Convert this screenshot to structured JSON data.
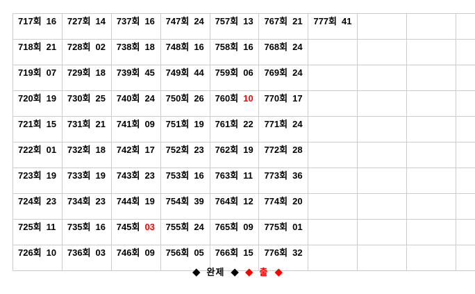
{
  "colors": {
    "text": "#000000",
    "highlight_red": "#ff0000",
    "grid_border": "#cccccc",
    "background": "#ffffff"
  },
  "table": {
    "columns": 10,
    "row_count": 10,
    "round_suffix": "회",
    "rows": [
      [
        {
          "round": "717회",
          "value": "16"
        },
        {
          "round": "727회",
          "value": "14"
        },
        {
          "round": "737회",
          "value": "16"
        },
        {
          "round": "747회",
          "value": "24"
        },
        {
          "round": "757회",
          "value": "13"
        },
        {
          "round": "767회",
          "value": "21"
        },
        {
          "round": "777회",
          "value": "41"
        },
        null,
        null,
        null
      ],
      [
        {
          "round": "718회",
          "value": "21"
        },
        {
          "round": "728회",
          "value": "02"
        },
        {
          "round": "738회",
          "value": "18"
        },
        {
          "round": "748회",
          "value": "16"
        },
        {
          "round": "758회",
          "value": "16"
        },
        {
          "round": "768회",
          "value": "24"
        },
        null,
        null,
        null,
        null
      ],
      [
        {
          "round": "719회",
          "value": "07"
        },
        {
          "round": "729회",
          "value": "18"
        },
        {
          "round": "739회",
          "value": "45"
        },
        {
          "round": "749회",
          "value": "44"
        },
        {
          "round": "759회",
          "value": "06"
        },
        {
          "round": "769회",
          "value": "24"
        },
        null,
        null,
        null,
        null
      ],
      [
        {
          "round": "720회",
          "value": "19"
        },
        {
          "round": "730회",
          "value": "25"
        },
        {
          "round": "740회",
          "value": "24"
        },
        {
          "round": "750회",
          "value": "26"
        },
        {
          "round": "760회",
          "value": "10",
          "red": true
        },
        {
          "round": "770회",
          "value": "17"
        },
        null,
        null,
        null,
        null
      ],
      [
        {
          "round": "721회",
          "value": "15"
        },
        {
          "round": "731회",
          "value": "21"
        },
        {
          "round": "741회",
          "value": "09"
        },
        {
          "round": "751회",
          "value": "19"
        },
        {
          "round": "761회",
          "value": "22"
        },
        {
          "round": "771회",
          "value": "24"
        },
        null,
        null,
        null,
        null
      ],
      [
        {
          "round": "722회",
          "value": "01"
        },
        {
          "round": "732회",
          "value": "18"
        },
        {
          "round": "742회",
          "value": "17"
        },
        {
          "round": "752회",
          "value": "23"
        },
        {
          "round": "762회",
          "value": "19"
        },
        {
          "round": "772회",
          "value": "28"
        },
        null,
        null,
        null,
        null
      ],
      [
        {
          "round": "723회",
          "value": "19"
        },
        {
          "round": "733회",
          "value": "19"
        },
        {
          "round": "743회",
          "value": "23"
        },
        {
          "round": "753회",
          "value": "16"
        },
        {
          "round": "763회",
          "value": "11"
        },
        {
          "round": "773회",
          "value": "36"
        },
        null,
        null,
        null,
        null
      ],
      [
        {
          "round": "724회",
          "value": "23"
        },
        {
          "round": "734회",
          "value": "23"
        },
        {
          "round": "744회",
          "value": "19"
        },
        {
          "round": "754회",
          "value": "39"
        },
        {
          "round": "764회",
          "value": "12"
        },
        {
          "round": "774회",
          "value": "20"
        },
        null,
        null,
        null,
        null
      ],
      [
        {
          "round": "725회",
          "value": "11"
        },
        {
          "round": "735회",
          "value": "16"
        },
        {
          "round": "745회",
          "value": "03",
          "red": true
        },
        {
          "round": "755회",
          "value": "24"
        },
        {
          "round": "765회",
          "value": "09"
        },
        {
          "round": "775회",
          "value": "01"
        },
        null,
        null,
        null,
        null
      ],
      [
        {
          "round": "726회",
          "value": "10"
        },
        {
          "round": "736회",
          "value": "03"
        },
        {
          "round": "746회",
          "value": "09"
        },
        {
          "round": "756회",
          "value": "05"
        },
        {
          "round": "766회",
          "value": "15"
        },
        {
          "round": "776회",
          "value": "32"
        },
        null,
        null,
        null,
        null
      ]
    ]
  },
  "legend": {
    "items": [
      {
        "kind": "diamond",
        "glyph": "◆",
        "color": "black"
      },
      {
        "kind": "label",
        "text": "완제",
        "color": "black"
      },
      {
        "kind": "diamond",
        "glyph": "◆",
        "color": "black"
      },
      {
        "kind": "diamond",
        "glyph": "◆",
        "color": "red"
      },
      {
        "kind": "label",
        "text": "출",
        "color": "red"
      },
      {
        "kind": "diamond",
        "glyph": "◆",
        "color": "red"
      }
    ]
  }
}
